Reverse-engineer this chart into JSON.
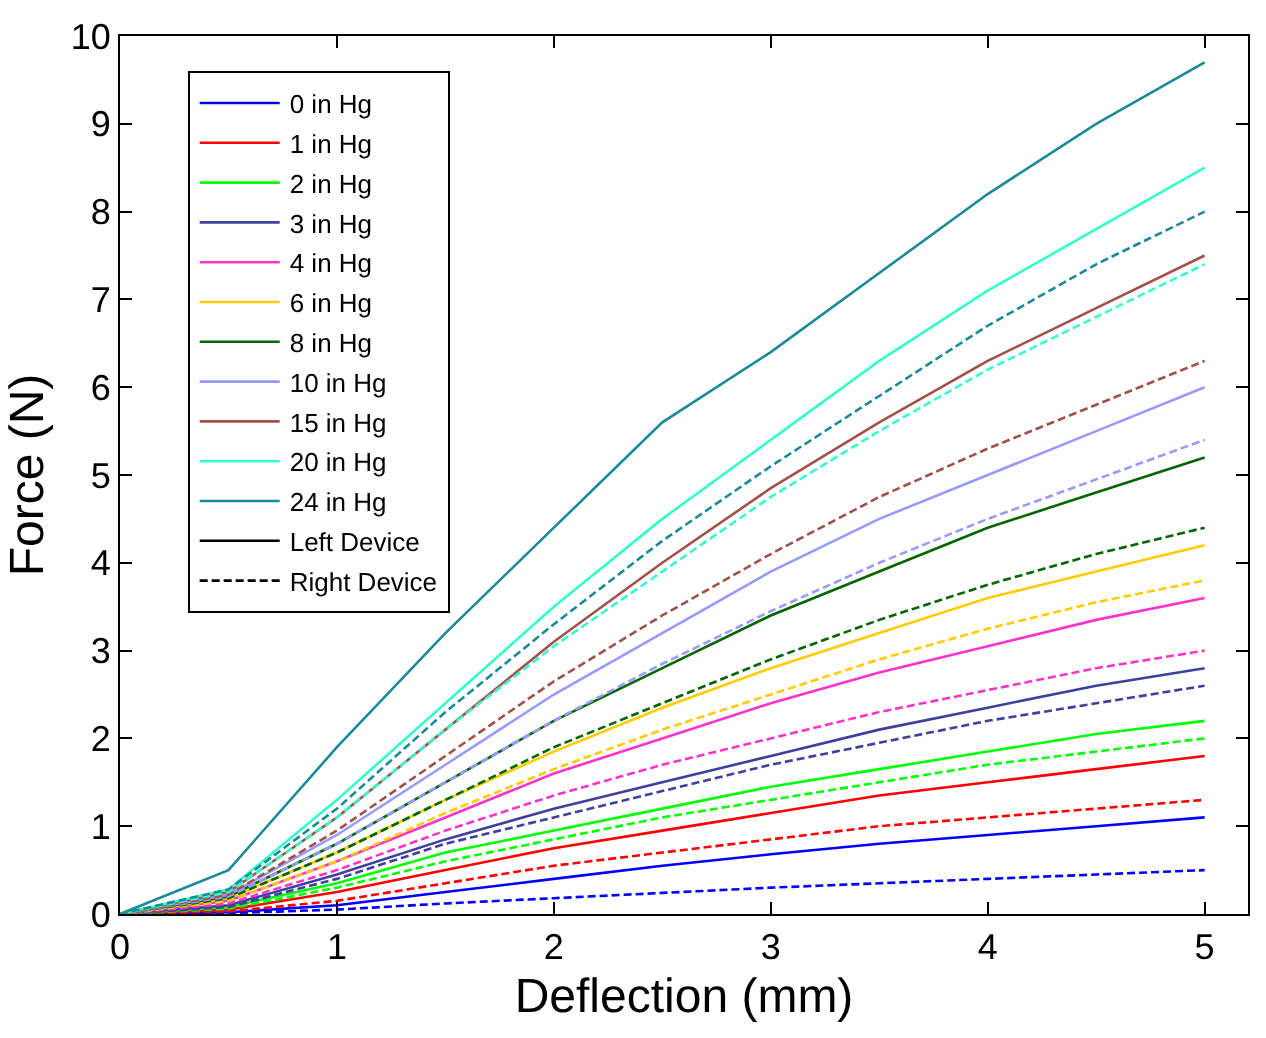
{
  "chart_data": {
    "type": "line",
    "xlabel": "Deflection (mm)",
    "ylabel": "Force (N)",
    "xlim": [
      0,
      5.2
    ],
    "ylim": [
      0,
      10
    ],
    "xticks": [
      0,
      1,
      2,
      3,
      4,
      5
    ],
    "yticks": [
      0,
      1,
      2,
      3,
      4,
      5,
      6,
      7,
      8,
      9,
      10
    ],
    "legend": "top left",
    "x": [
      0,
      0.5,
      1,
      1.5,
      2,
      2.5,
      3,
      3.5,
      4,
      4.5,
      5
    ],
    "series": [
      {
        "name": "0 in Hg",
        "color": "#0000ff",
        "line_style": "solid",
        "values": [
          0,
          0.02,
          0.1,
          0.25,
          0.4,
          0.55,
          0.68,
          0.8,
          0.9,
          1.0,
          1.1
        ]
      },
      {
        "name": "1 in Hg",
        "color": "#ff0000",
        "line_style": "solid",
        "values": [
          0,
          0.05,
          0.25,
          0.5,
          0.75,
          0.95,
          1.15,
          1.35,
          1.5,
          1.65,
          1.8
        ]
      },
      {
        "name": "2 in Hg",
        "color": "#00ff00",
        "line_style": "solid",
        "values": [
          0,
          0.08,
          0.35,
          0.7,
          0.95,
          1.2,
          1.45,
          1.65,
          1.85,
          2.05,
          2.2
        ]
      },
      {
        "name": "3 in Hg",
        "color": "#3f3f9f",
        "line_style": "solid",
        "values": [
          0,
          0.1,
          0.45,
          0.85,
          1.2,
          1.5,
          1.8,
          2.1,
          2.35,
          2.6,
          2.8
        ]
      },
      {
        "name": "4 in Hg",
        "color": "#ff33cc",
        "line_style": "solid",
        "values": [
          0,
          0.15,
          0.6,
          1.1,
          1.6,
          2.0,
          2.4,
          2.75,
          3.05,
          3.35,
          3.6
        ]
      },
      {
        "name": "6 in Hg",
        "color": "#ffcc00",
        "line_style": "solid",
        "values": [
          0,
          0.18,
          0.7,
          1.3,
          1.85,
          2.35,
          2.8,
          3.2,
          3.6,
          3.9,
          4.2
        ]
      },
      {
        "name": "8 in Hg",
        "color": "#006600",
        "line_style": "solid",
        "values": [
          0,
          0.2,
          0.8,
          1.5,
          2.2,
          2.8,
          3.4,
          3.9,
          4.4,
          4.8,
          5.2
        ]
      },
      {
        "name": "10 in Hg",
        "color": "#9999ff",
        "line_style": "solid",
        "values": [
          0,
          0.22,
          0.9,
          1.7,
          2.5,
          3.2,
          3.9,
          4.5,
          5.0,
          5.5,
          6.0
        ]
      },
      {
        "name": "15 in Hg",
        "color": "#a0524a",
        "line_style": "solid",
        "values": [
          0,
          0.25,
          1.1,
          2.1,
          3.1,
          4.0,
          4.85,
          5.6,
          6.3,
          6.9,
          7.5
        ]
      },
      {
        "name": "20 in Hg",
        "color": "#33ffcc",
        "line_style": "solid",
        "values": [
          0,
          0.28,
          1.3,
          2.4,
          3.5,
          4.5,
          5.4,
          6.3,
          7.1,
          7.8,
          8.5
        ]
      },
      {
        "name": "24 in Hg",
        "color": "#1a8a9a",
        "line_style": "solid",
        "values": [
          0,
          0.5,
          1.9,
          3.2,
          4.4,
          5.6,
          6.4,
          7.3,
          8.2,
          9.0,
          9.7
        ]
      },
      {
        "name": "Left Device",
        "color": "#000000",
        "line_style": "solid",
        "values": [
          null,
          null,
          null,
          null,
          null,
          null,
          null,
          null,
          null,
          null,
          null
        ]
      },
      {
        "name": "Right Device",
        "color": "#000000",
        "line_style": "dashed",
        "values": [
          null,
          null,
          null,
          null,
          null,
          null,
          null,
          null,
          null,
          null,
          null
        ]
      },
      {
        "color": "#0000ff",
        "line_style": "dashed",
        "values": [
          0,
          0.01,
          0.05,
          0.12,
          0.18,
          0.24,
          0.3,
          0.35,
          0.4,
          0.45,
          0.5
        ]
      },
      {
        "color": "#ff0000",
        "line_style": "dashed",
        "values": [
          0,
          0.03,
          0.15,
          0.35,
          0.55,
          0.7,
          0.85,
          1.0,
          1.1,
          1.2,
          1.3
        ]
      },
      {
        "color": "#00ff00",
        "line_style": "dashed",
        "values": [
          0,
          0.06,
          0.3,
          0.6,
          0.85,
          1.1,
          1.3,
          1.5,
          1.7,
          1.85,
          2.0
        ]
      },
      {
        "color": "#3f3f9f",
        "line_style": "dashed",
        "values": [
          0,
          0.08,
          0.4,
          0.8,
          1.1,
          1.4,
          1.7,
          1.95,
          2.2,
          2.4,
          2.6
        ]
      },
      {
        "color": "#ff33cc",
        "line_style": "dashed",
        "values": [
          0,
          0.12,
          0.5,
          0.95,
          1.35,
          1.7,
          2.0,
          2.3,
          2.55,
          2.8,
          3.0
        ]
      },
      {
        "color": "#ffcc00",
        "line_style": "dashed",
        "values": [
          0,
          0.15,
          0.6,
          1.15,
          1.65,
          2.1,
          2.5,
          2.9,
          3.25,
          3.55,
          3.8
        ]
      },
      {
        "color": "#006600",
        "line_style": "dashed",
        "values": [
          0,
          0.18,
          0.7,
          1.3,
          1.9,
          2.4,
          2.9,
          3.35,
          3.75,
          4.1,
          4.4
        ]
      },
      {
        "color": "#9999ff",
        "line_style": "dashed",
        "values": [
          0,
          0.2,
          0.8,
          1.5,
          2.2,
          2.85,
          3.45,
          4.0,
          4.5,
          4.95,
          5.4
        ]
      },
      {
        "color": "#a0524a",
        "line_style": "dashed",
        "values": [
          0,
          0.22,
          0.95,
          1.8,
          2.65,
          3.4,
          4.1,
          4.75,
          5.3,
          5.8,
          6.3
        ]
      },
      {
        "color": "#33ffcc",
        "line_style": "dashed",
        "values": [
          0,
          0.25,
          1.1,
          2.1,
          3.05,
          3.9,
          4.75,
          5.5,
          6.2,
          6.8,
          7.4
        ]
      },
      {
        "color": "#1a8a9a",
        "line_style": "dashed",
        "values": [
          0,
          0.28,
          1.2,
          2.3,
          3.3,
          4.25,
          5.1,
          5.9,
          6.7,
          7.4,
          8.0
        ]
      }
    ]
  }
}
